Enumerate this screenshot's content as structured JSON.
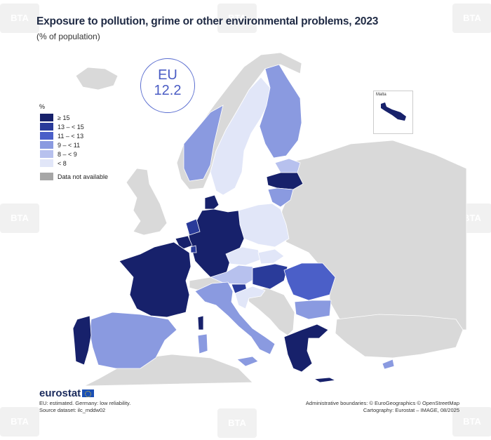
{
  "title": "Exposure to pollution, grime or other environmental problems, 2023",
  "subtitle": "(% of population)",
  "eu_badge": {
    "label": "EU",
    "value": "12.2"
  },
  "legend": {
    "unit": "%",
    "classes": [
      {
        "label": "≥ 15",
        "color": "#17216b"
      },
      {
        "label": "13 – < 15",
        "color": "#2a3b9a"
      },
      {
        "label": "11 – < 13",
        "color": "#4b5fc8"
      },
      {
        "label": "9 – < 11",
        "color": "#8a9ae0"
      },
      {
        "label": "8 – < 9",
        "color": "#b7c1ee"
      },
      {
        "label": "< 8",
        "color": "#e1e6f8"
      }
    ],
    "na": {
      "label": "Data not available",
      "color": "#a6a6a6"
    }
  },
  "inset": {
    "label": "Malta"
  },
  "logo": "eurostat",
  "notes": [
    "EU: estimated. Germany: low reliability.",
    "Source dataset: ilc_mddw02"
  ],
  "credits": [
    "Administrative boundaries: © EuroGeographics © OpenStreetMap",
    "Cartography: Eurostat – IMAGE, 08/2025"
  ],
  "colors": {
    "non_eu": "#d9d9d9",
    "background": "#ffffff",
    "border": "#ffffff"
  },
  "watermark": "BTA"
}
